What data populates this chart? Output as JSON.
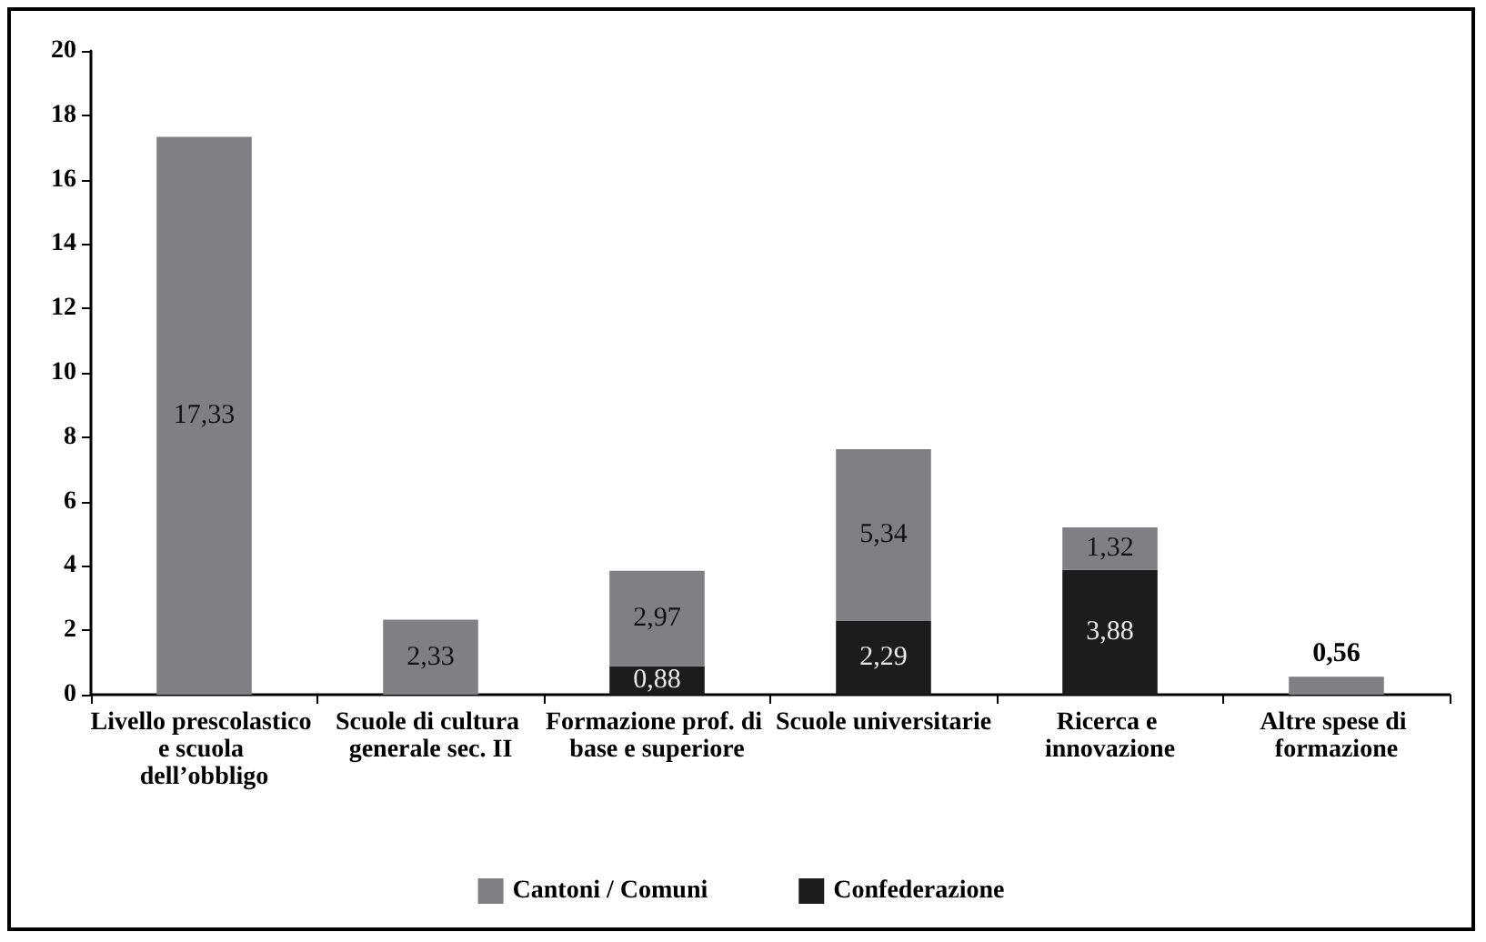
{
  "chart_data": {
    "type": "bar",
    "stacked": true,
    "categories": [
      "Livello prescolastico e scuola dell’obbligo",
      "Scuole di cultura generale sec. II",
      "Formazione prof. di base e superiore",
      "Scuole universitarie",
      "Ricerca e innovazione",
      "Altre spese di formazione"
    ],
    "series": [
      {
        "name": "Confederazione",
        "color": "#1c1c1c",
        "values": [
          null,
          0,
          0.88,
          2.29,
          3.88,
          0
        ],
        "value_labels": [
          null,
          null,
          "0,88",
          "2,29",
          "3,88",
          null
        ]
      },
      {
        "name": "Cantoni / Comuni",
        "color": "#808083",
        "values": [
          17.33,
          2.33,
          2.97,
          5.34,
          1.32,
          0.56
        ],
        "value_labels": [
          "17,33",
          "2,33",
          "2,97",
          "5,34",
          "1,32",
          "0,56"
        ]
      }
    ],
    "ylim": [
      0,
      20
    ],
    "yticks": [
      0,
      2,
      4,
      6,
      8,
      10,
      12,
      14,
      16,
      18,
      20
    ],
    "grid": false,
    "legend": "bottom"
  }
}
